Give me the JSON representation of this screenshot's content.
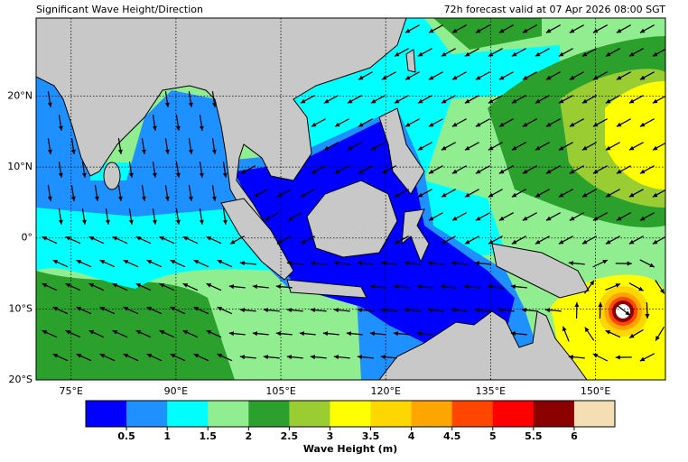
{
  "title": "Significant Wave Height/Direction",
  "subtitle": "72h forecast valid at 07 Apr 2026 08:00 SGT",
  "map": {
    "lonlim": [
      70,
      160
    ],
    "latlim": [
      -20,
      31
    ],
    "lonticks": [
      {
        "value": 75,
        "label": "75°E"
      },
      {
        "value": 90,
        "label": "90°E"
      },
      {
        "value": 105,
        "label": "105°E"
      },
      {
        "value": 120,
        "label": "120°E"
      },
      {
        "value": 135,
        "label": "135°E"
      },
      {
        "value": 150,
        "label": "150°E"
      }
    ],
    "latticks": [
      {
        "value": -20,
        "label": "20°S"
      },
      {
        "value": -10,
        "label": "10°S"
      },
      {
        "value": 0,
        "label": "0°"
      },
      {
        "value": 10,
        "label": "10°N"
      },
      {
        "value": 20,
        "label": "20°N"
      }
    ],
    "grid": true
  },
  "colorbar": {
    "label": "Wave Height (m)",
    "lim": [
      0,
      6.5
    ],
    "colors": [
      "#0000ff",
      "#1e90ff",
      "#00ffff",
      "#90ee90",
      "#2ca02c",
      "#9acd32",
      "#ffff00",
      "#ffd700",
      "#ffa500",
      "#ff4500",
      "#ff0000",
      "#8b0000",
      "#f5deb3"
    ],
    "ticks": [
      0.5,
      1,
      1.5,
      2,
      2.5,
      3,
      3.5,
      4,
      4.5,
      5,
      5.5,
      6
    ]
  }
}
